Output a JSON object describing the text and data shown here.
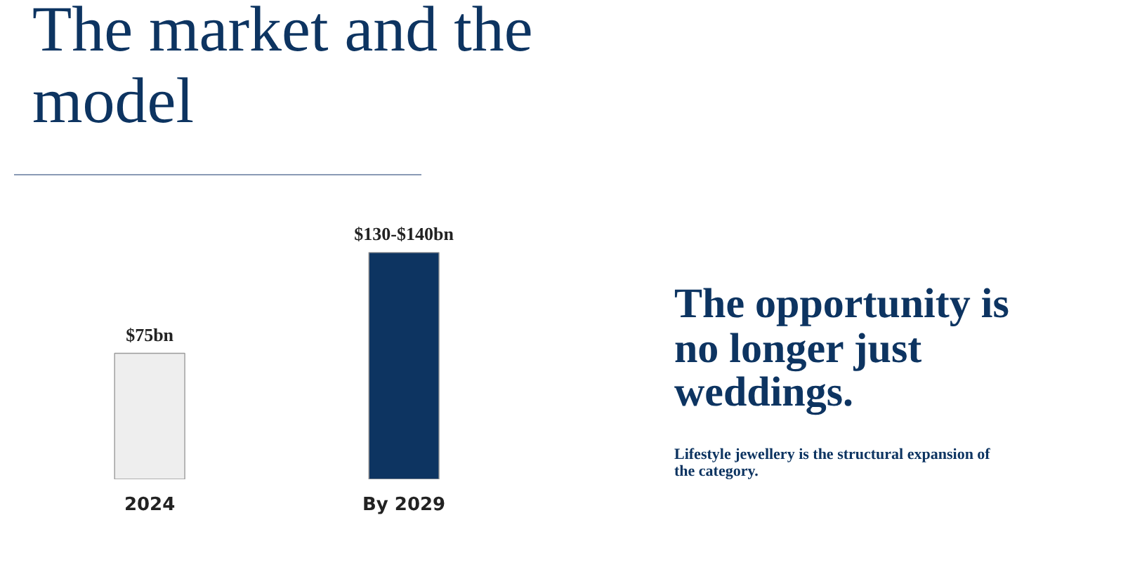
{
  "chart_data": {
    "type": "bar",
    "title": "The market and the model",
    "categories": [
      "2024",
      "By 2029"
    ],
    "values": [
      75,
      135
    ],
    "colors": [
      "#eeeeee",
      "#0d3461"
    ],
    "value_labels": [
      "$75bn",
      "$130-$140bn"
    ],
    "tick_labels": "x",
    "grid": false,
    "annotations": [
      "The opportunity is no longer just weddings.",
      "Lifestyle jewellery is the structural expansion of the category."
    ]
  }
}
